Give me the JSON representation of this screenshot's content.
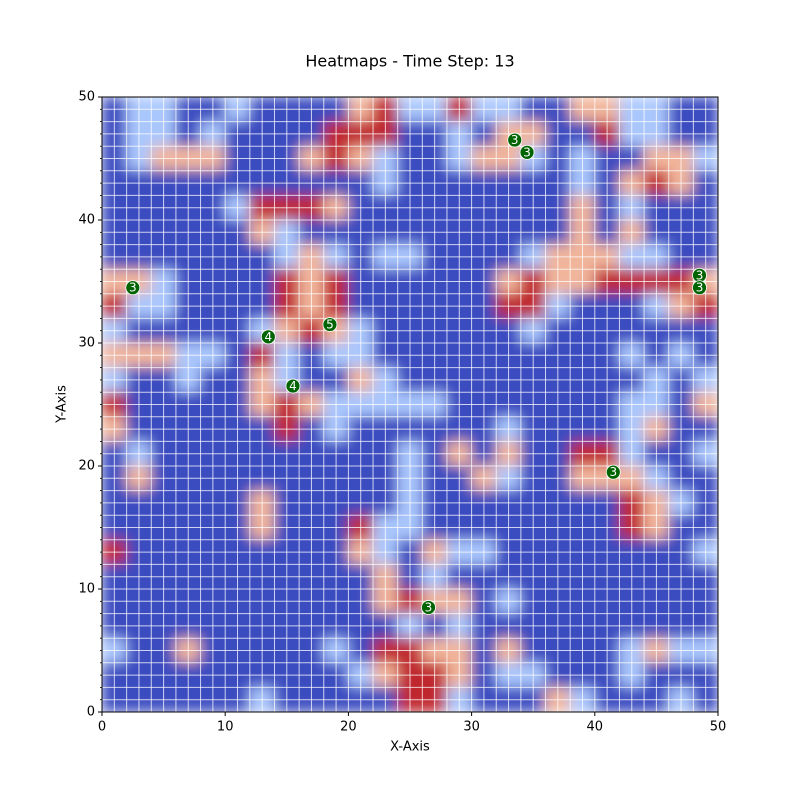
{
  "chart_data": {
    "type": "heatmap",
    "title": "Heatmaps - Time Step: 13",
    "x_label": "X-Axis",
    "y_label": "Y-Axis",
    "xlim": [
      0,
      50
    ],
    "ylim": [
      0,
      50
    ],
    "xticks": [
      0,
      10,
      20,
      30,
      40,
      50
    ],
    "yticks": [
      0,
      10,
      20,
      30,
      40,
      50
    ],
    "grid": true,
    "grid_spacing": 1,
    "colors": [
      "#3b4cc0",
      "#aac7fd",
      "#f1b59b",
      "#c0282d"
    ],
    "z": [
      [
        0,
        1,
        1,
        0,
        0,
        1,
        0,
        0,
        0,
        0,
        2,
        3,
        1,
        1,
        3,
        1,
        1,
        0,
        0,
        2,
        2,
        1,
        1,
        0,
        0
      ],
      [
        0,
        1,
        1,
        0,
        1,
        0,
        0,
        0,
        0,
        3,
        3,
        3,
        0,
        0,
        1,
        0,
        2,
        2,
        0,
        0,
        3,
        1,
        1,
        0,
        0
      ],
      [
        0,
        1,
        2,
        2,
        2,
        0,
        0,
        0,
        2,
        3,
        2,
        1,
        0,
        0,
        1,
        2,
        2,
        1,
        0,
        1,
        0,
        0,
        2,
        2,
        1
      ],
      [
        0,
        0,
        0,
        0,
        0,
        0,
        0,
        0,
        0,
        0,
        0,
        1,
        0,
        0,
        0,
        0,
        0,
        0,
        0,
        1,
        0,
        2,
        3,
        2,
        0
      ],
      [
        0,
        0,
        0,
        0,
        0,
        1,
        3,
        3,
        3,
        2,
        0,
        0,
        0,
        0,
        0,
        0,
        0,
        0,
        0,
        2,
        0,
        1,
        0,
        0,
        0
      ],
      [
        0,
        0,
        0,
        0,
        0,
        0,
        2,
        1,
        0,
        0,
        0,
        0,
        0,
        0,
        0,
        0,
        0,
        0,
        0,
        2,
        0,
        2,
        0,
        0,
        0
      ],
      [
        0,
        0,
        0,
        0,
        0,
        0,
        0,
        1,
        2,
        1,
        0,
        1,
        1,
        0,
        0,
        0,
        0,
        1,
        2,
        2,
        2,
        1,
        1,
        0,
        0
      ],
      [
        2,
        2,
        1,
        0,
        0,
        0,
        0,
        3,
        2,
        3,
        0,
        0,
        0,
        0,
        0,
        0,
        2,
        3,
        2,
        2,
        3,
        3,
        3,
        3,
        2
      ],
      [
        3,
        1,
        1,
        0,
        0,
        0,
        0,
        3,
        2,
        3,
        0,
        0,
        0,
        0,
        0,
        0,
        3,
        3,
        1,
        0,
        0,
        0,
        1,
        2,
        3
      ],
      [
        1,
        0,
        0,
        0,
        0,
        0,
        1,
        2,
        3,
        2,
        1,
        0,
        0,
        0,
        0,
        0,
        0,
        1,
        0,
        0,
        0,
        0,
        0,
        0,
        0
      ],
      [
        2,
        2,
        2,
        1,
        1,
        0,
        3,
        1,
        0,
        1,
        1,
        0,
        0,
        0,
        0,
        0,
        0,
        0,
        0,
        0,
        0,
        1,
        0,
        1,
        0
      ],
      [
        1,
        0,
        0,
        1,
        0,
        0,
        2,
        1,
        0,
        0,
        2,
        1,
        0,
        0,
        0,
        0,
        0,
        0,
        0,
        0,
        0,
        0,
        1,
        0,
        1
      ],
      [
        3,
        0,
        0,
        0,
        0,
        0,
        2,
        3,
        2,
        1,
        1,
        1,
        1,
        1,
        0,
        0,
        0,
        0,
        0,
        0,
        0,
        1,
        1,
        0,
        2
      ],
      [
        2,
        0,
        0,
        0,
        0,
        0,
        0,
        3,
        0,
        1,
        0,
        0,
        0,
        0,
        0,
        0,
        1,
        0,
        0,
        0,
        0,
        1,
        2,
        0,
        0
      ],
      [
        0,
        1,
        0,
        0,
        0,
        0,
        0,
        0,
        0,
        0,
        0,
        0,
        1,
        0,
        2,
        0,
        2,
        0,
        0,
        3,
        3,
        1,
        0,
        0,
        1
      ],
      [
        0,
        2,
        0,
        0,
        0,
        0,
        0,
        0,
        0,
        0,
        0,
        0,
        1,
        0,
        0,
        2,
        1,
        0,
        0,
        2,
        2,
        2,
        1,
        0,
        0
      ],
      [
        0,
        0,
        0,
        0,
        0,
        0,
        2,
        0,
        0,
        0,
        0,
        0,
        1,
        0,
        0,
        0,
        0,
        0,
        0,
        0,
        0,
        3,
        2,
        1,
        0
      ],
      [
        0,
        0,
        0,
        0,
        0,
        0,
        2,
        0,
        0,
        0,
        3,
        1,
        1,
        0,
        0,
        0,
        0,
        0,
        0,
        0,
        0,
        3,
        2,
        0,
        0
      ],
      [
        3,
        0,
        0,
        0,
        0,
        0,
        0,
        0,
        0,
        0,
        2,
        1,
        0,
        2,
        1,
        1,
        0,
        0,
        0,
        0,
        0,
        0,
        0,
        0,
        1
      ],
      [
        0,
        0,
        0,
        0,
        0,
        0,
        0,
        0,
        0,
        0,
        0,
        2,
        0,
        1,
        0,
        0,
        0,
        0,
        0,
        0,
        0,
        0,
        0,
        0,
        0
      ],
      [
        0,
        0,
        0,
        0,
        0,
        0,
        0,
        0,
        0,
        0,
        0,
        2,
        3,
        2,
        2,
        0,
        1,
        0,
        0,
        0,
        0,
        0,
        0,
        0,
        0
      ],
      [
        0,
        0,
        0,
        0,
        0,
        0,
        0,
        0,
        0,
        0,
        0,
        0,
        1,
        0,
        1,
        0,
        0,
        0,
        0,
        0,
        0,
        0,
        0,
        0,
        0
      ],
      [
        1,
        0,
        0,
        2,
        0,
        0,
        0,
        0,
        0,
        1,
        0,
        3,
        3,
        2,
        2,
        0,
        2,
        0,
        0,
        0,
        0,
        1,
        2,
        1,
        1
      ],
      [
        0,
        0,
        0,
        0,
        0,
        0,
        0,
        0,
        0,
        0,
        1,
        2,
        3,
        3,
        2,
        0,
        1,
        1,
        0,
        0,
        0,
        1,
        0,
        0,
        0
      ],
      [
        0,
        0,
        0,
        0,
        0,
        0,
        1,
        0,
        0,
        0,
        0,
        0,
        3,
        3,
        1,
        0,
        0,
        0,
        2,
        1,
        0,
        0,
        0,
        1,
        0
      ]
    ],
    "points": {
      "color": "#006400",
      "x": [
        33.5,
        34.5,
        2.5,
        48.5,
        48.5,
        13.5,
        18.5,
        15.5,
        41.5,
        26.5
      ],
      "y": [
        46.5,
        45.5,
        34.5,
        35.5,
        34.5,
        30.5,
        31.5,
        26.5,
        19.5,
        8.5
      ],
      "labels": [
        "3",
        "3",
        "3",
        "3",
        "3",
        "4",
        "5",
        "4",
        "3",
        "3"
      ]
    }
  }
}
